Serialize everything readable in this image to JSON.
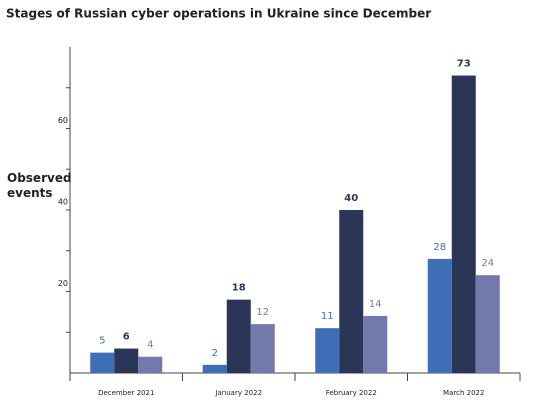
{
  "chart_data": {
    "type": "bar",
    "title": "Stages of Russian cyber operations in Ukraine since December",
    "y_label": "Observed events",
    "categories": [
      "December 2021",
      "January 2022",
      "February 2022",
      "March 2022"
    ],
    "series": [
      {
        "color": "#3e6fb6",
        "values": [
          5,
          2,
          11,
          28
        ]
      },
      {
        "color": "#2b3557",
        "values": [
          6,
          18,
          40,
          73
        ]
      },
      {
        "color": "#7479ad",
        "values": [
          4,
          12,
          14,
          24
        ]
      }
    ],
    "ylim": [
      0,
      80
    ],
    "yticks": [
      20,
      40,
      60
    ],
    "minor_yticks": [
      10,
      30,
      50,
      70
    ]
  }
}
